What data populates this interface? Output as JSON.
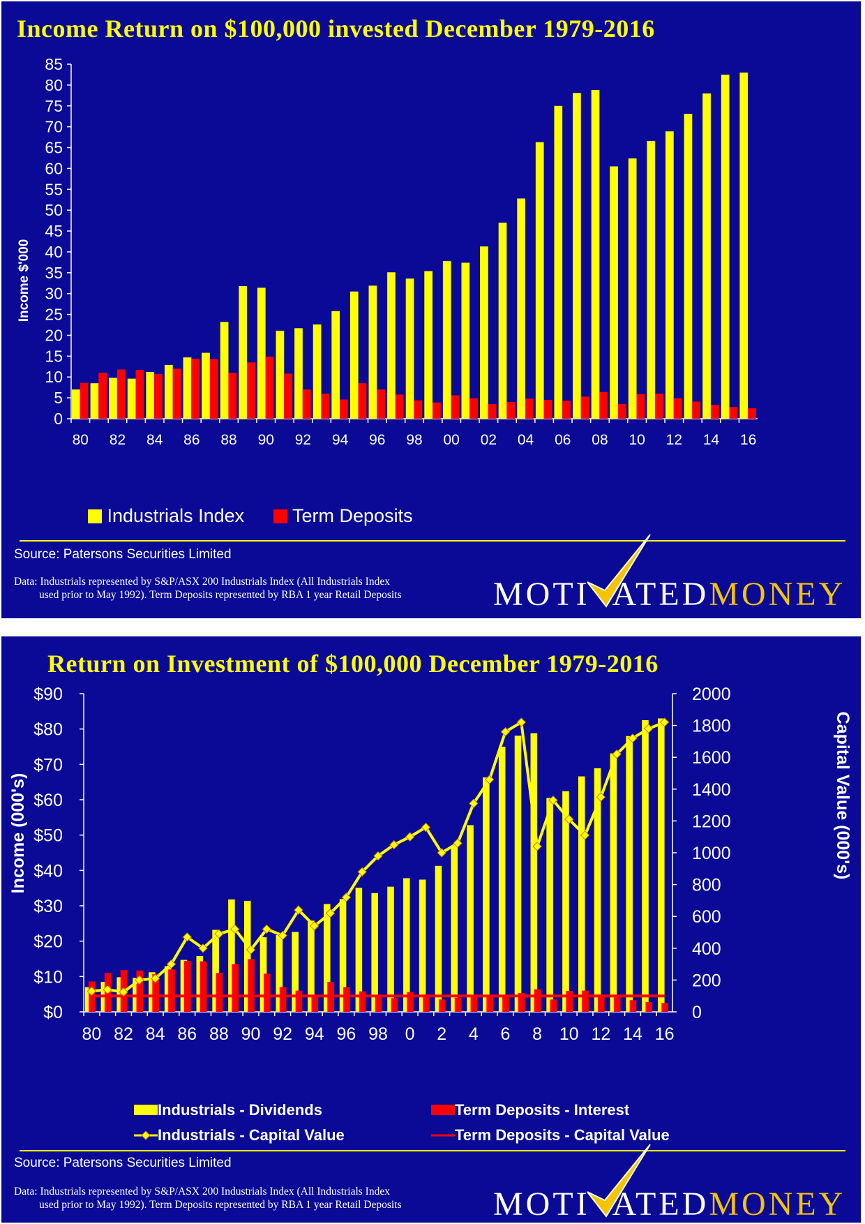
{
  "colors": {
    "background": "#0a0a96",
    "industrials": "#ffff00",
    "term_deposits": "#ff0000",
    "text": "#ffffff",
    "title": "#ffff00",
    "logo_accent": "#f5c400"
  },
  "panel1": {
    "title": "Income Return on $100,000 invested December 1979-2016",
    "source": "Source: Patersons Securities Limited",
    "note_line1": "Data: Industrials represented by S&P/ASX 200 Industrials Index (All Industrials Index",
    "note_line2": "used prior to May 1992). Term Deposits represented by RBA 1 year Retail Deposits",
    "logo_part1": "MOTI",
    "logo_part2": "ATED",
    "logo_part3": "MONEY"
  },
  "panel2": {
    "title": "Return on Investment of $100,000 December 1979-2016",
    "source": "Source: Patersons Securities Limited",
    "note_line1": "Data: Industrials represented by S&P/ASX 200 Industrials Index (All Industrials Index",
    "note_line2": "used prior to May 1992). Term Deposits represented by RBA 1 year Retail Deposits",
    "logo_part1": "MOTI",
    "logo_part2": "ATED",
    "logo_part3": "MONEY"
  },
  "chart_data": [
    {
      "type": "bar",
      "title": "Income Return on $100,000 invested December 1979-2016",
      "ylabel": "Income $'000",
      "xlabel": "",
      "ylim": [
        0,
        85
      ],
      "yticks": [
        0,
        5,
        10,
        15,
        20,
        25,
        30,
        35,
        40,
        45,
        50,
        55,
        60,
        65,
        70,
        75,
        80,
        85
      ],
      "x_tick_labels": [
        "80",
        "82",
        "84",
        "86",
        "88",
        "90",
        "92",
        "94",
        "96",
        "98",
        "00",
        "02",
        "04",
        "06",
        "08",
        "10",
        "12",
        "14",
        "16"
      ],
      "categories": [
        "80",
        "81",
        "82",
        "83",
        "84",
        "85",
        "86",
        "87",
        "88",
        "89",
        "90",
        "91",
        "92",
        "93",
        "94",
        "95",
        "96",
        "97",
        "98",
        "99",
        "00",
        "01",
        "02",
        "03",
        "04",
        "05",
        "06",
        "07",
        "08",
        "09",
        "10",
        "11",
        "12",
        "13",
        "14",
        "15",
        "16"
      ],
      "series": [
        {
          "name": "Industrials Index",
          "color": "#ffff00",
          "values": [
            7,
            8.5,
            9.8,
            9.6,
            11.2,
            12.9,
            14.7,
            15.8,
            23.2,
            31.8,
            31.4,
            21.1,
            21.7,
            22.6,
            25.8,
            30.5,
            31.9,
            35.1,
            33.6,
            35.4,
            37.8,
            37.4,
            41.3,
            47,
            52.8,
            66.3,
            75,
            78.1,
            78.8,
            60.5,
            62.4,
            66.6,
            68.9,
            73.1,
            78,
            82.5,
            83
          ]
        },
        {
          "name": "Term Deposits",
          "color": "#ff0000",
          "values": [
            8.6,
            11,
            11.8,
            11.7,
            10.7,
            12,
            14.4,
            14.3,
            11,
            13.5,
            14.9,
            10.8,
            7,
            6,
            4.6,
            8.5,
            7,
            5.8,
            4.4,
            3.9,
            5.6,
            4.9,
            3.5,
            4,
            4.8,
            4.5,
            4.3,
            5.3,
            6.4,
            3.5,
            5.9,
            6,
            4.9,
            4.1,
            3.3,
            2.8,
            2.5
          ]
        }
      ],
      "legend": "bottom-left",
      "grid": false
    },
    {
      "type": "bar",
      "title": "Return on Investment of $100,000 December 1979-2016",
      "ylabel": "Income (000's)",
      "y2label": "Capital Value (000's)",
      "ylim": [
        0,
        90
      ],
      "y2lim": [
        0,
        2000
      ],
      "yticks": [
        "$0",
        "$10",
        "$20",
        "$30",
        "$40",
        "$50",
        "$60",
        "$70",
        "$80",
        "$90"
      ],
      "y2ticks": [
        0,
        200,
        400,
        600,
        800,
        1000,
        1200,
        1400,
        1600,
        1800,
        2000
      ],
      "x_tick_labels": [
        "80",
        "82",
        "84",
        "86",
        "88",
        "90",
        "92",
        "94",
        "96",
        "98",
        "0",
        "2",
        "4",
        "6",
        "8",
        "10",
        "12",
        "14",
        "16"
      ],
      "categories": [
        "80",
        "81",
        "82",
        "83",
        "84",
        "85",
        "86",
        "87",
        "88",
        "89",
        "90",
        "91",
        "92",
        "93",
        "94",
        "95",
        "96",
        "97",
        "98",
        "99",
        "0",
        "1",
        "2",
        "3",
        "4",
        "5",
        "6",
        "7",
        "8",
        "9",
        "10",
        "11",
        "12",
        "13",
        "14",
        "15",
        "16"
      ],
      "series": [
        {
          "name": "Industrials - Dividends",
          "axis": "left",
          "kind": "bar",
          "color": "#ffff00",
          "values": [
            7,
            8.5,
            9.8,
            9.6,
            11.2,
            12.9,
            14.7,
            15.8,
            23.2,
            31.8,
            31.4,
            21.1,
            21.7,
            22.6,
            25.8,
            30.5,
            31.9,
            35.1,
            33.6,
            35.4,
            37.8,
            37.4,
            41.3,
            47,
            52.8,
            66.3,
            75,
            78.1,
            78.8,
            60.5,
            62.4,
            66.6,
            68.9,
            73.1,
            78,
            82.5,
            83
          ]
        },
        {
          "name": "Term Deposits - Interest",
          "axis": "left",
          "kind": "bar",
          "color": "#ff0000",
          "values": [
            8.6,
            11,
            11.8,
            11.7,
            10.7,
            12,
            14.4,
            14.3,
            11,
            13.5,
            14.9,
            10.8,
            7,
            6,
            4.6,
            8.5,
            7,
            5.8,
            4.4,
            3.9,
            5.6,
            4.9,
            3.5,
            4,
            4.8,
            4.5,
            4.3,
            5.3,
            6.4,
            3.5,
            5.9,
            6,
            4.9,
            4.1,
            3.3,
            2.8,
            2.5
          ]
        },
        {
          "name": "Industrials - Capital Value",
          "axis": "right",
          "kind": "line",
          "color": "#ffff00",
          "values": [
            130,
            140,
            125,
            200,
            210,
            300,
            470,
            400,
            490,
            520,
            390,
            520,
            480,
            640,
            540,
            620,
            720,
            880,
            980,
            1050,
            1100,
            1160,
            1000,
            1060,
            1310,
            1460,
            1760,
            1820,
            1040,
            1330,
            1210,
            1110,
            1350,
            1620,
            1720,
            1780,
            1820
          ]
        },
        {
          "name": "Term Deposits - Capital Value",
          "axis": "right",
          "kind": "line",
          "color": "#ff0000",
          "values": [
            100,
            100,
            100,
            100,
            100,
            100,
            100,
            100,
            100,
            100,
            100,
            100,
            100,
            100,
            100,
            100,
            100,
            100,
            100,
            100,
            100,
            100,
            100,
            100,
            100,
            100,
            100,
            100,
            100,
            100,
            100,
            100,
            100,
            100,
            100,
            100,
            100
          ]
        }
      ],
      "legend": "bottom",
      "grid": false
    }
  ]
}
